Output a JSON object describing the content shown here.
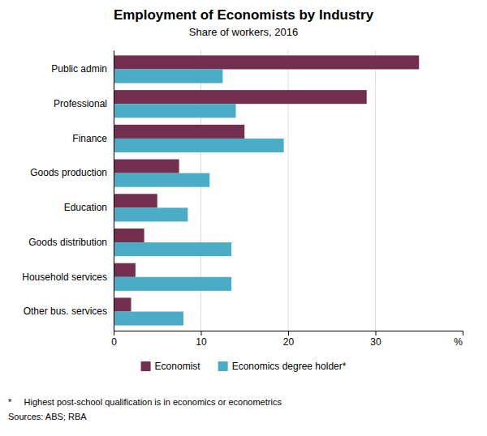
{
  "chart_data": {
    "type": "bar",
    "orientation": "horizontal",
    "title": "Employment of Economists by Industry",
    "subtitle": "Share of workers, 2016",
    "categories": [
      "Public admin",
      "Professional",
      "Finance",
      "Goods production",
      "Education",
      "Goods distribution",
      "Household services",
      "Other bus. services"
    ],
    "series": [
      {
        "name": "Economist",
        "color": "#722F50",
        "values": [
          35,
          29,
          15,
          7.5,
          5,
          3.5,
          2.5,
          2
        ]
      },
      {
        "name": "Economics degree holder*",
        "color": "#4BACC6",
        "values": [
          12.5,
          14,
          19.5,
          11,
          8.5,
          13.5,
          13.5,
          8
        ]
      }
    ],
    "xlabel": "%",
    "xlim": [
      0,
      40
    ],
    "xticks": [
      0,
      10,
      20,
      30
    ],
    "grid": true,
    "legend": "bottom",
    "notes": [
      "*     Highest post-school qualification is in economics or econometrics",
      "Sources: ABS; RBA"
    ]
  }
}
